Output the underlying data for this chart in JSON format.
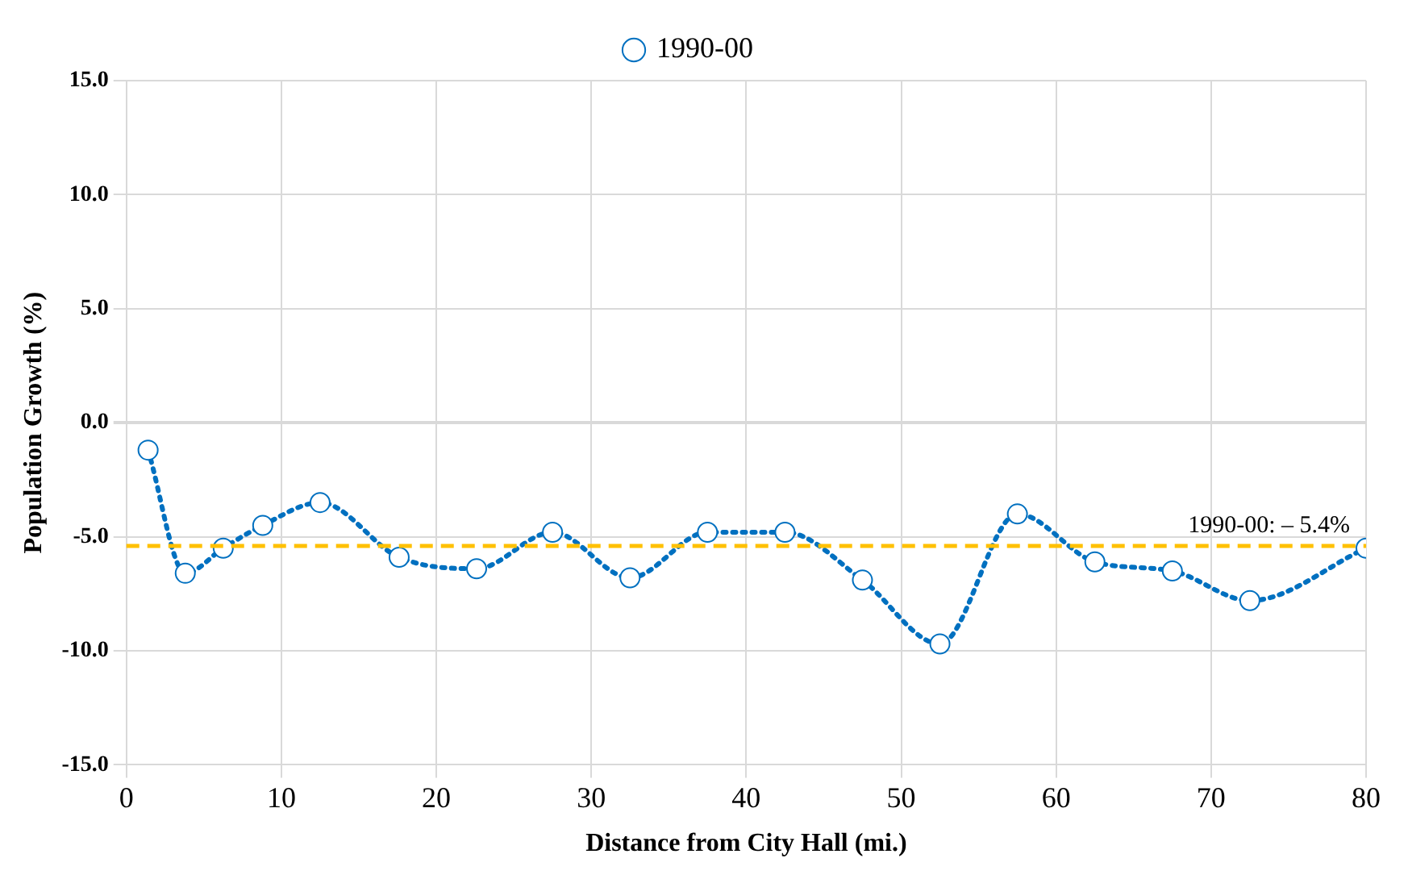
{
  "chart_data": {
    "type": "line",
    "xlabel": "Distance from City Hall (mi.)",
    "ylabel": "Population Growth (%)",
    "x": [
      1.4,
      3.8,
      6.25,
      8.8,
      12.5,
      17.6,
      22.6,
      27.5,
      32.5,
      37.5,
      42.5,
      47.5,
      52.5,
      57.5,
      62.5,
      67.5,
      72.5,
      80
    ],
    "series": [
      {
        "name": "1990-00",
        "color": "#0070c0",
        "values": [
          -1.2,
          -6.6,
          -5.5,
          -4.5,
          -3.5,
          -5.9,
          -6.4,
          -4.8,
          -6.8,
          -4.8,
          -4.8,
          -6.9,
          -9.7,
          -4.0,
          -6.1,
          -6.5,
          -7.8,
          -5.5
        ]
      }
    ],
    "xlim": [
      0,
      80
    ],
    "xticks": [
      0,
      10,
      20,
      30,
      40,
      50,
      60,
      70,
      80
    ],
    "ylim": [
      -15,
      15
    ],
    "yticks": [
      {
        "value": -15,
        "label": "-15.0"
      },
      {
        "value": -10,
        "label": "-10.0"
      },
      {
        "value": -5,
        "label": "-5.0"
      },
      {
        "value": 0,
        "label": "0.0"
      },
      {
        "value": 5,
        "label": "5.0"
      },
      {
        "value": 10,
        "label": "10.0"
      },
      {
        "value": 15,
        "label": "15.0"
      }
    ],
    "ref_lines": [
      {
        "axis": "y",
        "value": -5.4,
        "label": "1990-00: – 5.4%",
        "color": "#ffc000",
        "line_style": "dashed"
      }
    ],
    "grid": true,
    "legend": "top",
    "marker": "circle",
    "line_style": "dotted"
  }
}
